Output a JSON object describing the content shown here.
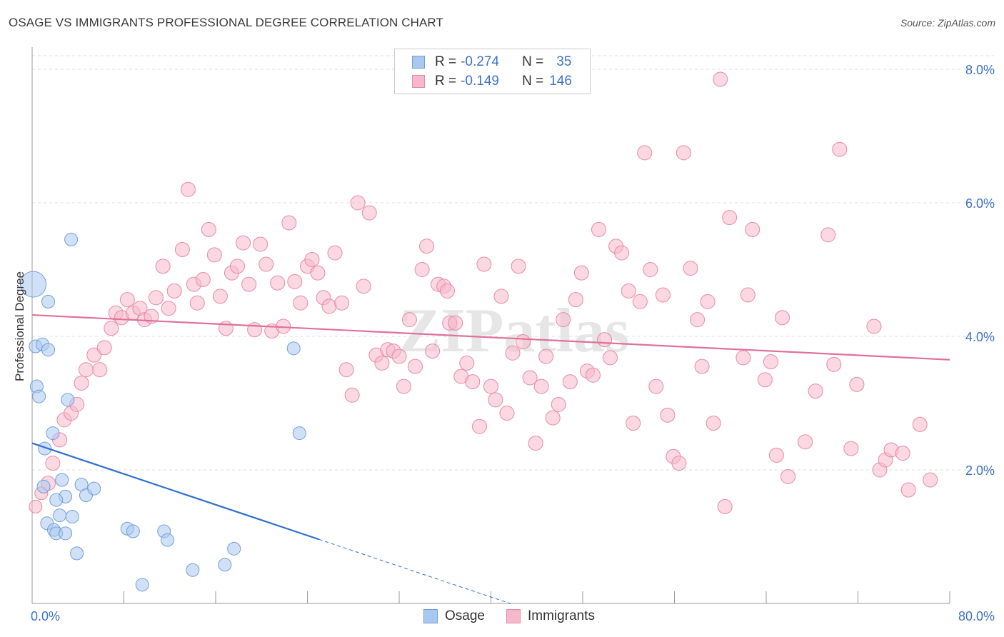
{
  "header": {
    "title": "OSAGE VS IMMIGRANTS PROFESSIONAL DEGREE CORRELATION CHART",
    "source": "Source: ZipAtlas.com"
  },
  "legend": {
    "rows": [
      {
        "r_label": "R =",
        "r_value": "-0.274",
        "n_label": "N =",
        "n_value": "35",
        "color": "#a9c8f0",
        "border": "#6f9fd8"
      },
      {
        "r_label": "R =",
        "r_value": "-0.149",
        "n_label": "N =",
        "n_value": "146",
        "color": "#f7b8cb",
        "border": "#e58aa8"
      }
    ]
  },
  "bottom_legend": {
    "items": [
      {
        "label": "Osage",
        "color": "#a9c8f0",
        "border": "#6f9fd8"
      },
      {
        "label": "Immigrants",
        "color": "#f7b8cb",
        "border": "#e58aa8"
      }
    ]
  },
  "watermark": "ZIPatlas",
  "chart_data": {
    "type": "scatter",
    "title": "OSAGE VS IMMIGRANTS PROFESSIONAL DEGREE CORRELATION CHART",
    "xlabel": "",
    "ylabel": "Professional Degree",
    "xlim": [
      0,
      80
    ],
    "ylim": [
      0,
      8.2
    ],
    "x_tick_labels": [
      "0.0%",
      "80.0%"
    ],
    "y_ticks": [
      2,
      4,
      6,
      8
    ],
    "y_tick_labels": [
      "2.0%",
      "4.0%",
      "6.0%",
      "8.0%"
    ],
    "grid": true,
    "series": [
      {
        "name": "Osage",
        "color": "#a9c8f0",
        "stroke": "#6f9fd8",
        "trend": {
          "x0": 0,
          "y0": 2.4,
          "x1": 25,
          "y1": 0.96,
          "dash_to_x": 42,
          "line_color": "#2f6fcf"
        },
        "points": [
          [
            0.1,
            4.78,
            18
          ],
          [
            0.3,
            3.85,
            9
          ],
          [
            0.4,
            3.25,
            9
          ],
          [
            0.6,
            3.1,
            9
          ],
          [
            0.9,
            3.88,
            9
          ],
          [
            1.4,
            4.52,
            9
          ],
          [
            1.4,
            3.8,
            9
          ],
          [
            3.4,
            5.45,
            9
          ],
          [
            3.1,
            3.05,
            9
          ],
          [
            1.8,
            2.55,
            9
          ],
          [
            1.1,
            2.32,
            9
          ],
          [
            1.0,
            1.75,
            9
          ],
          [
            2.6,
            1.85,
            9
          ],
          [
            2.9,
            1.6,
            9
          ],
          [
            2.1,
            1.55,
            9
          ],
          [
            1.3,
            1.2,
            9
          ],
          [
            1.9,
            1.1,
            9
          ],
          [
            2.4,
            1.32,
            9
          ],
          [
            3.5,
            1.3,
            9
          ],
          [
            4.3,
            1.78,
            9
          ],
          [
            4.7,
            1.62,
            9
          ],
          [
            5.4,
            1.72,
            9
          ],
          [
            2.1,
            1.05,
            9
          ],
          [
            2.9,
            1.05,
            9
          ],
          [
            3.9,
            0.75,
            9
          ],
          [
            8.3,
            1.12,
            9
          ],
          [
            8.8,
            1.08,
            9
          ],
          [
            11.5,
            1.08,
            9
          ],
          [
            11.8,
            0.95,
            9
          ],
          [
            9.6,
            0.28,
            9
          ],
          [
            14.0,
            0.5,
            9
          ],
          [
            17.6,
            0.82,
            9
          ],
          [
            16.8,
            0.58,
            9
          ],
          [
            22.8,
            3.82,
            9
          ],
          [
            23.3,
            2.55,
            9
          ]
        ]
      },
      {
        "name": "Immigrants",
        "color": "#f7b8cb",
        "stroke": "#e58aa8",
        "trend": {
          "x0": 0,
          "y0": 4.32,
          "x1": 80,
          "y1": 3.65,
          "line_color": "#e0709a"
        },
        "points": [
          [
            0.3,
            1.45,
            9
          ],
          [
            0.8,
            1.65,
            9
          ],
          [
            1.4,
            1.8,
            10
          ],
          [
            1.8,
            2.1,
            10
          ],
          [
            2.4,
            2.45,
            10
          ],
          [
            2.8,
            2.75,
            10
          ],
          [
            3.4,
            2.85,
            10
          ],
          [
            3.9,
            2.98,
            10
          ],
          [
            4.3,
            3.3,
            10
          ],
          [
            4.7,
            3.5,
            10
          ],
          [
            5.4,
            3.72,
            10
          ],
          [
            5.9,
            3.5,
            10
          ],
          [
            6.3,
            3.83,
            10
          ],
          [
            6.9,
            4.12,
            10
          ],
          [
            7.3,
            4.35,
            10
          ],
          [
            7.8,
            4.28,
            10
          ],
          [
            8.3,
            4.55,
            10
          ],
          [
            8.8,
            4.35,
            10
          ],
          [
            9.4,
            4.42,
            10
          ],
          [
            9.8,
            4.25,
            10
          ],
          [
            10.4,
            4.3,
            10
          ],
          [
            10.8,
            4.58,
            10
          ],
          [
            11.4,
            5.05,
            10
          ],
          [
            11.9,
            4.42,
            10
          ],
          [
            12.4,
            4.68,
            10
          ],
          [
            13.1,
            5.3,
            10
          ],
          [
            13.6,
            6.2,
            10
          ],
          [
            14.1,
            4.78,
            10
          ],
          [
            14.4,
            4.5,
            10
          ],
          [
            14.9,
            4.85,
            10
          ],
          [
            15.4,
            5.6,
            10
          ],
          [
            15.9,
            5.22,
            10
          ],
          [
            16.4,
            4.6,
            10
          ],
          [
            16.9,
            4.12,
            10
          ],
          [
            17.4,
            4.95,
            10
          ],
          [
            17.9,
            5.05,
            10
          ],
          [
            18.4,
            5.4,
            10
          ],
          [
            18.9,
            4.78,
            10
          ],
          [
            19.4,
            4.1,
            10
          ],
          [
            19.9,
            5.38,
            10
          ],
          [
            20.4,
            5.08,
            10
          ],
          [
            20.9,
            4.08,
            10
          ],
          [
            21.4,
            4.8,
            10
          ],
          [
            21.9,
            4.15,
            10
          ],
          [
            22.4,
            5.7,
            10
          ],
          [
            22.9,
            4.82,
            10
          ],
          [
            23.4,
            4.5,
            10
          ],
          [
            24.0,
            5.05,
            10
          ],
          [
            24.4,
            5.15,
            10
          ],
          [
            24.9,
            4.95,
            10
          ],
          [
            25.4,
            4.58,
            10
          ],
          [
            25.9,
            4.45,
            10
          ],
          [
            26.4,
            5.25,
            10
          ],
          [
            27.0,
            4.5,
            10
          ],
          [
            27.4,
            3.5,
            10
          ],
          [
            27.9,
            3.12,
            10
          ],
          [
            28.4,
            6.0,
            10
          ],
          [
            28.9,
            4.75,
            10
          ],
          [
            29.4,
            5.85,
            10
          ],
          [
            30.0,
            3.72,
            10
          ],
          [
            30.5,
            3.6,
            10
          ],
          [
            31.0,
            3.8,
            10
          ],
          [
            31.5,
            3.78,
            10
          ],
          [
            32.0,
            3.7,
            10
          ],
          [
            32.4,
            3.25,
            10
          ],
          [
            32.9,
            4.25,
            10
          ],
          [
            33.4,
            3.55,
            10
          ],
          [
            34.0,
            5.0,
            10
          ],
          [
            34.4,
            5.35,
            10
          ],
          [
            34.9,
            3.78,
            10
          ],
          [
            35.4,
            4.78,
            10
          ],
          [
            35.9,
            4.75,
            10
          ],
          [
            36.2,
            4.68,
            10
          ],
          [
            36.4,
            4.2,
            10
          ],
          [
            36.9,
            4.2,
            10
          ],
          [
            37.4,
            3.4,
            10
          ],
          [
            37.9,
            3.6,
            10
          ],
          [
            38.4,
            3.32,
            10
          ],
          [
            39.0,
            2.65,
            10
          ],
          [
            39.4,
            5.08,
            10
          ],
          [
            40.0,
            3.25,
            10
          ],
          [
            40.4,
            3.05,
            10
          ],
          [
            40.9,
            4.6,
            10
          ],
          [
            41.4,
            2.85,
            10
          ],
          [
            41.9,
            3.75,
            10
          ],
          [
            42.4,
            5.05,
            10
          ],
          [
            42.8,
            3.92,
            10
          ],
          [
            43.4,
            3.38,
            10
          ],
          [
            43.9,
            2.4,
            10
          ],
          [
            44.4,
            3.25,
            10
          ],
          [
            44.8,
            3.7,
            10
          ],
          [
            45.4,
            2.78,
            10
          ],
          [
            45.9,
            2.98,
            10
          ],
          [
            46.3,
            4.25,
            10
          ],
          [
            46.9,
            3.32,
            10
          ],
          [
            47.4,
            4.55,
            10
          ],
          [
            47.9,
            4.95,
            10
          ],
          [
            48.4,
            3.48,
            10
          ],
          [
            48.9,
            3.42,
            10
          ],
          [
            49.4,
            5.6,
            10
          ],
          [
            49.9,
            3.95,
            10
          ],
          [
            50.4,
            3.68,
            10
          ],
          [
            50.9,
            5.35,
            10
          ],
          [
            51.4,
            5.25,
            10
          ],
          [
            52.0,
            4.68,
            10
          ],
          [
            52.4,
            2.7,
            10
          ],
          [
            53.0,
            4.52,
            10
          ],
          [
            53.4,
            6.75,
            10
          ],
          [
            53.9,
            5.0,
            10
          ],
          [
            54.4,
            3.25,
            10
          ],
          [
            55.0,
            4.62,
            10
          ],
          [
            55.4,
            2.82,
            10
          ],
          [
            55.9,
            2.2,
            10
          ],
          [
            56.4,
            2.1,
            10
          ],
          [
            56.8,
            6.75,
            10
          ],
          [
            57.4,
            5.02,
            10
          ],
          [
            58.0,
            4.25,
            10
          ],
          [
            58.4,
            3.55,
            10
          ],
          [
            58.9,
            4.52,
            10
          ],
          [
            59.4,
            2.7,
            10
          ],
          [
            60.0,
            7.85,
            10
          ],
          [
            60.4,
            1.45,
            10
          ],
          [
            60.8,
            5.78,
            10
          ],
          [
            62.0,
            3.68,
            10
          ],
          [
            62.4,
            4.62,
            10
          ],
          [
            62.8,
            5.6,
            10
          ],
          [
            63.9,
            3.35,
            10
          ],
          [
            64.4,
            3.62,
            10
          ],
          [
            64.9,
            2.22,
            10
          ],
          [
            65.4,
            4.28,
            10
          ],
          [
            65.9,
            1.9,
            10
          ],
          [
            67.4,
            2.42,
            10
          ],
          [
            68.3,
            3.18,
            10
          ],
          [
            69.4,
            5.52,
            10
          ],
          [
            69.9,
            3.58,
            10
          ],
          [
            70.4,
            6.8,
            10
          ],
          [
            71.4,
            2.32,
            10
          ],
          [
            71.9,
            3.28,
            10
          ],
          [
            73.4,
            4.15,
            10
          ],
          [
            73.9,
            2.0,
            10
          ],
          [
            74.4,
            2.15,
            10
          ],
          [
            74.9,
            2.3,
            10
          ],
          [
            75.9,
            2.25,
            10
          ],
          [
            76.4,
            1.7,
            10
          ],
          [
            77.4,
            2.68,
            10
          ],
          [
            78.3,
            1.85,
            10
          ]
        ]
      }
    ]
  }
}
